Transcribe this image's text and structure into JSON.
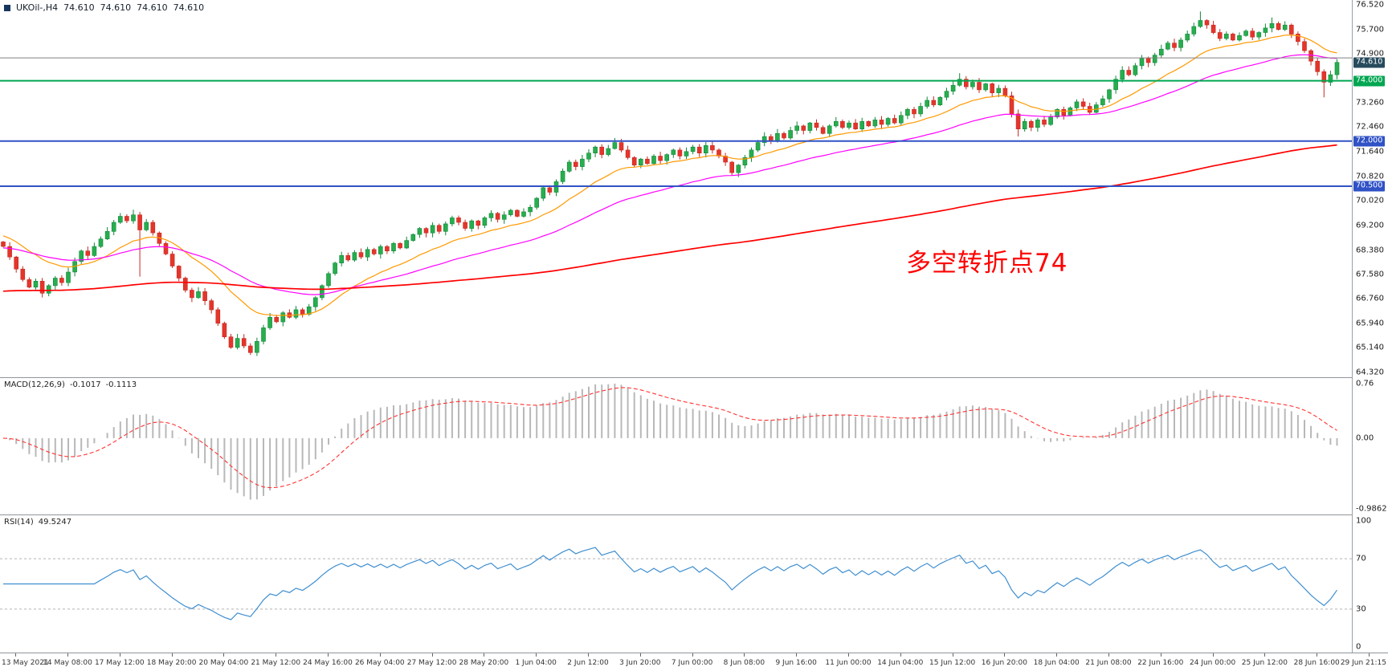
{
  "window": {
    "title_line": {
      "symbol_period": "UKOil-,H4",
      "open": "74.610",
      "high": "74.610",
      "low": "74.610",
      "close": "74.610"
    }
  },
  "annotation": {
    "text": "多空转折点74",
    "color": "#ff0000"
  },
  "price_scale": {
    "min": 64.32,
    "max": 76.52,
    "labels": [
      "76.520",
      "75.700",
      "74.900",
      "73.260",
      "72.460",
      "71.640",
      "70.820",
      "70.020",
      "69.200",
      "68.380",
      "67.580",
      "66.760",
      "65.940",
      "65.140",
      "64.320"
    ],
    "badges": [
      {
        "value": "74.610",
        "price": 74.61,
        "bg": "#274b5d",
        "name": "current-price-badge"
      },
      {
        "value": "74.000",
        "price": 74.0,
        "bg": "#00a651",
        "name": "green-level-badge"
      },
      {
        "value": "72.000",
        "price": 72.0,
        "bg": "#3052c6",
        "name": "blue-level-badge-72"
      },
      {
        "value": "70.500",
        "price": 70.5,
        "bg": "#3052c6",
        "name": "blue-level-badge-70-5"
      }
    ]
  },
  "hlines": [
    {
      "price": 74.76,
      "color": "#808080",
      "width": 1,
      "name": "gray-price-line"
    },
    {
      "price": 74.0,
      "color": "#00a651",
      "width": 2,
      "name": "green-support-line-74"
    },
    {
      "price": 72.0,
      "color": "#3052c6",
      "width": 2,
      "name": "blue-support-line-72"
    },
    {
      "price": 70.5,
      "color": "#3052c6",
      "width": 2,
      "name": "blue-support-line-70-5"
    }
  ],
  "macd": {
    "label": "MACD(12,26,9)",
    "value_main": "-0.1017",
    "value_signal": "-0.1113",
    "params": {
      "fast": 12,
      "slow": 26,
      "signal": 9
    },
    "range": [
      -0.9862,
      0.76
    ],
    "scale": {
      "top": "0.76",
      "zero": "0.00",
      "bottom": "-0.9862"
    }
  },
  "rsi": {
    "label": "RSI(14)",
    "value": "49.5247",
    "period": 14,
    "levels": [
      70,
      30
    ],
    "scale_labels": [
      "100",
      "70",
      "30",
      "0"
    ],
    "scale_values": [
      100,
      70,
      30,
      0
    ],
    "range": [
      0,
      100
    ]
  },
  "chart_data": {
    "type": "candlestick",
    "symbol": "UKOil",
    "timeframe": "H4",
    "ylim": [
      64.32,
      76.52
    ],
    "x_tick_labels": [
      "13 May 2021",
      "14 May 08:00",
      "17 May 12:00",
      "18 May 20:00",
      "20 May 04:00",
      "21 May 12:00",
      "24 May 16:00",
      "26 May 04:00",
      "27 May 12:00",
      "28 May 20:00",
      "1 Jun 04:00",
      "2 Jun 12:00",
      "3 Jun 20:00",
      "7 Jun 00:00",
      "8 Jun 08:00",
      "9 Jun 16:00",
      "11 Jun 00:00",
      "14 Jun 04:00",
      "15 Jun 12:00",
      "16 Jun 20:00",
      "18 Jun 04:00",
      "21 Jun 08:00",
      "22 Jun 16:00",
      "24 Jun 00:00",
      "25 Jun 12:00",
      "28 Jun 16:00",
      "29 Jun 21:15"
    ],
    "first_open": 68.65,
    "closes": [
      68.5,
      68.15,
      67.75,
      67.4,
      67.15,
      67.35,
      66.95,
      67.2,
      67.45,
      67.3,
      67.65,
      68.0,
      68.35,
      68.2,
      68.5,
      68.75,
      69.0,
      69.3,
      69.5,
      69.35,
      69.55,
      69.05,
      69.3,
      68.95,
      68.6,
      68.25,
      67.85,
      67.45,
      67.05,
      66.8,
      67.0,
      66.7,
      66.4,
      65.95,
      65.5,
      65.15,
      65.45,
      65.2,
      64.98,
      65.35,
      65.8,
      66.15,
      66.0,
      66.3,
      66.15,
      66.4,
      66.25,
      66.5,
      66.8,
      67.2,
      67.6,
      67.95,
      68.2,
      68.05,
      68.3,
      68.15,
      68.4,
      68.25,
      68.5,
      68.35,
      68.6,
      68.45,
      68.7,
      68.9,
      69.1,
      68.95,
      69.2,
      69.0,
      69.25,
      69.45,
      69.3,
      69.1,
      69.35,
      69.2,
      69.45,
      69.6,
      69.4,
      69.55,
      69.7,
      69.5,
      69.65,
      69.8,
      70.1,
      70.45,
      70.3,
      70.65,
      71.0,
      71.3,
      71.15,
      71.4,
      71.6,
      71.8,
      71.55,
      71.75,
      71.95,
      71.7,
      71.45,
      71.2,
      71.4,
      71.25,
      71.5,
      71.35,
      71.55,
      71.7,
      71.5,
      71.65,
      71.8,
      71.6,
      71.85,
      71.7,
      71.5,
      71.3,
      70.95,
      71.2,
      71.45,
      71.7,
      71.95,
      72.15,
      72.0,
      72.25,
      72.1,
      72.35,
      72.5,
      72.35,
      72.6,
      72.45,
      72.25,
      72.5,
      72.65,
      72.45,
      72.6,
      72.4,
      72.65,
      72.5,
      72.7,
      72.55,
      72.75,
      72.6,
      72.85,
      73.05,
      72.9,
      73.15,
      73.35,
      73.2,
      73.45,
      73.65,
      73.85,
      74.05,
      73.8,
      73.95,
      73.7,
      73.9,
      73.6,
      73.75,
      73.5,
      72.9,
      72.4,
      72.65,
      72.45,
      72.7,
      72.55,
      72.8,
      73.05,
      72.85,
      73.1,
      73.3,
      73.15,
      72.95,
      73.2,
      73.4,
      73.7,
      74.05,
      74.35,
      74.2,
      74.5,
      74.75,
      74.6,
      74.85,
      75.05,
      75.25,
      75.1,
      75.35,
      75.55,
      75.8,
      76.0,
      75.85,
      75.6,
      75.4,
      75.55,
      75.35,
      75.5,
      75.65,
      75.45,
      75.6,
      75.75,
      75.9,
      75.7,
      75.85,
      75.55,
      75.3,
      75.0,
      74.65,
      74.3,
      73.95,
      74.2,
      74.61
    ],
    "wick_overrides": {
      "20": {
        "high": 69.72
      },
      "21": {
        "low": 67.5
      },
      "38": {
        "low": 64.9
      },
      "94": {
        "high": 72.1
      },
      "147": {
        "high": 74.25
      },
      "156": {
        "low": 72.15
      },
      "184": {
        "high": 76.3
      },
      "195": {
        "high": 76.1
      },
      "203": {
        "low": 73.45
      }
    },
    "moving_averages": [
      {
        "name": "fast",
        "period": 16,
        "seed": 68.9,
        "color": "#ff9900",
        "width": 1.2
      },
      {
        "name": "medium",
        "period": 40,
        "seed": 68.45,
        "color": "#ff00ff",
        "width": 1.2
      },
      {
        "name": "slow",
        "period": 200,
        "seed": 67.0,
        "color": "#ff0000",
        "width": 1.7
      }
    ],
    "colors": {
      "up": "#27ae4e",
      "up_border": "#13873a",
      "down": "#e5352b",
      "down_border": "#c32a21",
      "macd_hist": "#b8b8b8",
      "macd_signal": "#ff3333",
      "rsi_line": "#3e8ed0"
    }
  },
  "time_axis": {
    "labels_source": "chart_data.x_tick_labels"
  }
}
